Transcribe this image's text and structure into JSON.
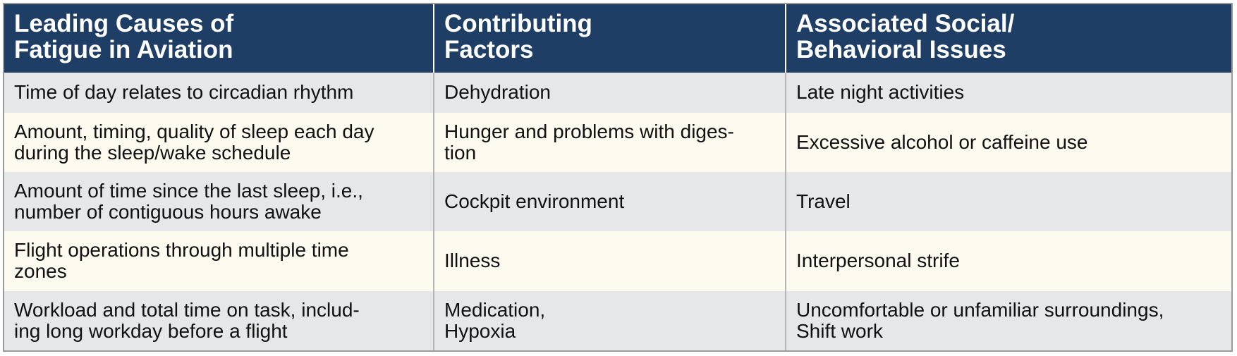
{
  "table": {
    "headers": [
      "Leading Causes of\nFatigue in Aviation",
      "Contributing\nFactors",
      "Associated Social/\nBehavioral Issues"
    ],
    "rows": [
      [
        "Time of day relates to circadian rhythm",
        "Dehydration",
        "Late night activities"
      ],
      [
        "Amount, timing, quality of sleep each day\nduring the sleep/wake schedule",
        "Hunger and problems with diges-\ntion",
        "Excessive alcohol or caffeine use"
      ],
      [
        "Amount of time since the last sleep, i.e.,\nnumber of contiguous hours awake",
        "Cockpit environment",
        "Travel"
      ],
      [
        "Flight operations through multiple time\nzones",
        "Illness",
        "Interpersonal strife"
      ],
      [
        "Workload and total time on task, includ-\ning long workday before a flight",
        "Medication,\nHypoxia",
        "Uncomfortable or unfamiliar surroundings,\nShift work"
      ]
    ]
  },
  "colors": {
    "header_bg": "#1e3e66",
    "row_odd": "#e6e7e9",
    "row_even": "#fdfbf0"
  }
}
